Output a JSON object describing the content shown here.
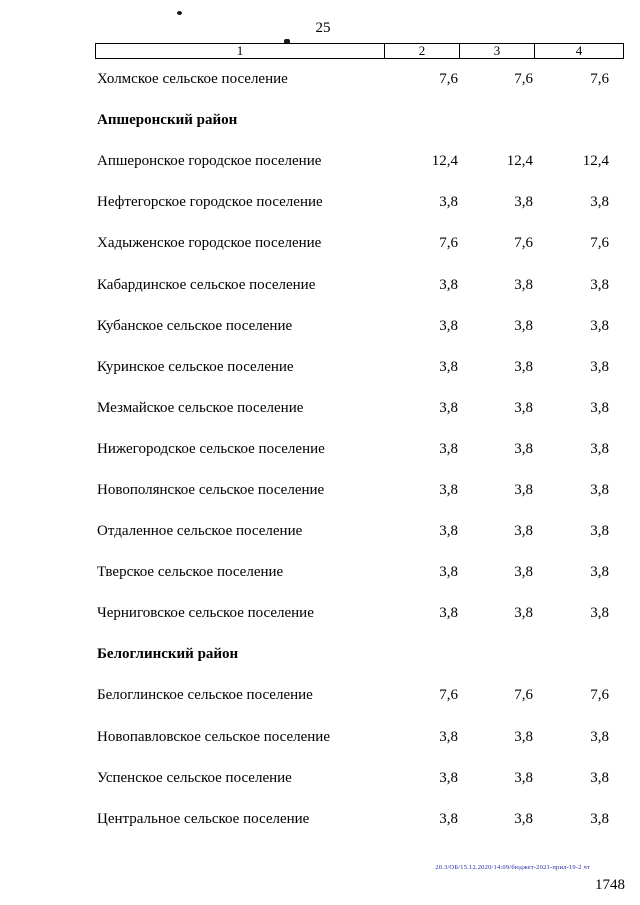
{
  "page": {
    "top_page_number": "25",
    "bottom_page_number": "1748",
    "footer_note": "20.3/ОБ/15.12.2020/14:09/бюджет-2021-прил-19-2 чт"
  },
  "table": {
    "headers": [
      "1",
      "2",
      "3",
      "4"
    ],
    "rows": [
      {
        "type": "data",
        "label": "Холмское сельское поселение",
        "values": [
          "7,6",
          "7,6",
          "7,6"
        ]
      },
      {
        "type": "section",
        "label": "Апшеронский район"
      },
      {
        "type": "data",
        "label": "Апшеронское городское поселение",
        "values": [
          "12,4",
          "12,4",
          "12,4"
        ]
      },
      {
        "type": "data",
        "label": "Нефтегорское городское поселение",
        "values": [
          "3,8",
          "3,8",
          "3,8"
        ]
      },
      {
        "type": "data",
        "label": "Хадыженское городское поселение",
        "values": [
          "7,6",
          "7,6",
          "7,6"
        ]
      },
      {
        "type": "data",
        "label": "Кабардинское сельское поселение",
        "values": [
          "3,8",
          "3,8",
          "3,8"
        ]
      },
      {
        "type": "data",
        "label": "Кубанское сельское поселение",
        "values": [
          "3,8",
          "3,8",
          "3,8"
        ]
      },
      {
        "type": "data",
        "label": "Куринское сельское поселение",
        "values": [
          "3,8",
          "3,8",
          "3,8"
        ]
      },
      {
        "type": "data",
        "label": "Мезмайское сельское поселение",
        "values": [
          "3,8",
          "3,8",
          "3,8"
        ]
      },
      {
        "type": "data",
        "label": "Нижегородское сельское поселение",
        "values": [
          "3,8",
          "3,8",
          "3,8"
        ]
      },
      {
        "type": "data",
        "label": "Новополянское сельское поселение",
        "values": [
          "3,8",
          "3,8",
          "3,8"
        ]
      },
      {
        "type": "data",
        "label": "Отдаленное сельское поселение",
        "values": [
          "3,8",
          "3,8",
          "3,8"
        ]
      },
      {
        "type": "data",
        "label": "Тверское сельское поселение",
        "values": [
          "3,8",
          "3,8",
          "3,8"
        ]
      },
      {
        "type": "data",
        "label": "Черниговское сельское поселение",
        "values": [
          "3,8",
          "3,8",
          "3,8"
        ]
      },
      {
        "type": "section",
        "label": "Белоглинский район"
      },
      {
        "type": "data",
        "label": "Белоглинское сельское поселение",
        "values": [
          "7,6",
          "7,6",
          "7,6"
        ]
      },
      {
        "type": "data",
        "label": "Новопавловское сельское поселение",
        "values": [
          "3,8",
          "3,8",
          "3,8"
        ]
      },
      {
        "type": "data",
        "label": "Успенское сельское поселение",
        "values": [
          "3,8",
          "3,8",
          "3,8"
        ]
      },
      {
        "type": "data",
        "label": "Центральное сельское поселение",
        "values": [
          "3,8",
          "3,8",
          "3,8"
        ]
      }
    ]
  }
}
